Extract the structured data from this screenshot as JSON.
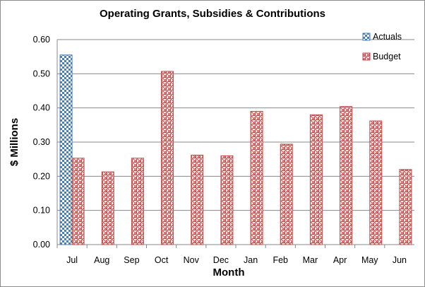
{
  "chart_data": {
    "type": "bar",
    "title": "Operating Grants, Subsidies & Contributions",
    "xlabel": "Month",
    "ylabel": "$ Millions",
    "categories": [
      "Jul",
      "Aug",
      "Sep",
      "Oct",
      "Nov",
      "Dec",
      "Jan",
      "Feb",
      "Mar",
      "Apr",
      "May",
      "Jun"
    ],
    "series": [
      {
        "name": "Actuals",
        "color": "#4a7ebb",
        "pattern": "checkerboard",
        "values": [
          0.555,
          null,
          null,
          null,
          null,
          null,
          null,
          null,
          null,
          null,
          null,
          null
        ]
      },
      {
        "name": "Budget",
        "color": "#c0504d",
        "pattern": "weave",
        "values": [
          0.253,
          0.213,
          0.253,
          0.507,
          0.262,
          0.26,
          0.39,
          0.294,
          0.38,
          0.404,
          0.362,
          0.22
        ]
      }
    ],
    "ylim": [
      0,
      0.6
    ],
    "yticks": [
      "0.00",
      "0.10",
      "0.20",
      "0.30",
      "0.40",
      "0.50",
      "0.60"
    ],
    "grid": true,
    "legend_position": "top-right"
  }
}
